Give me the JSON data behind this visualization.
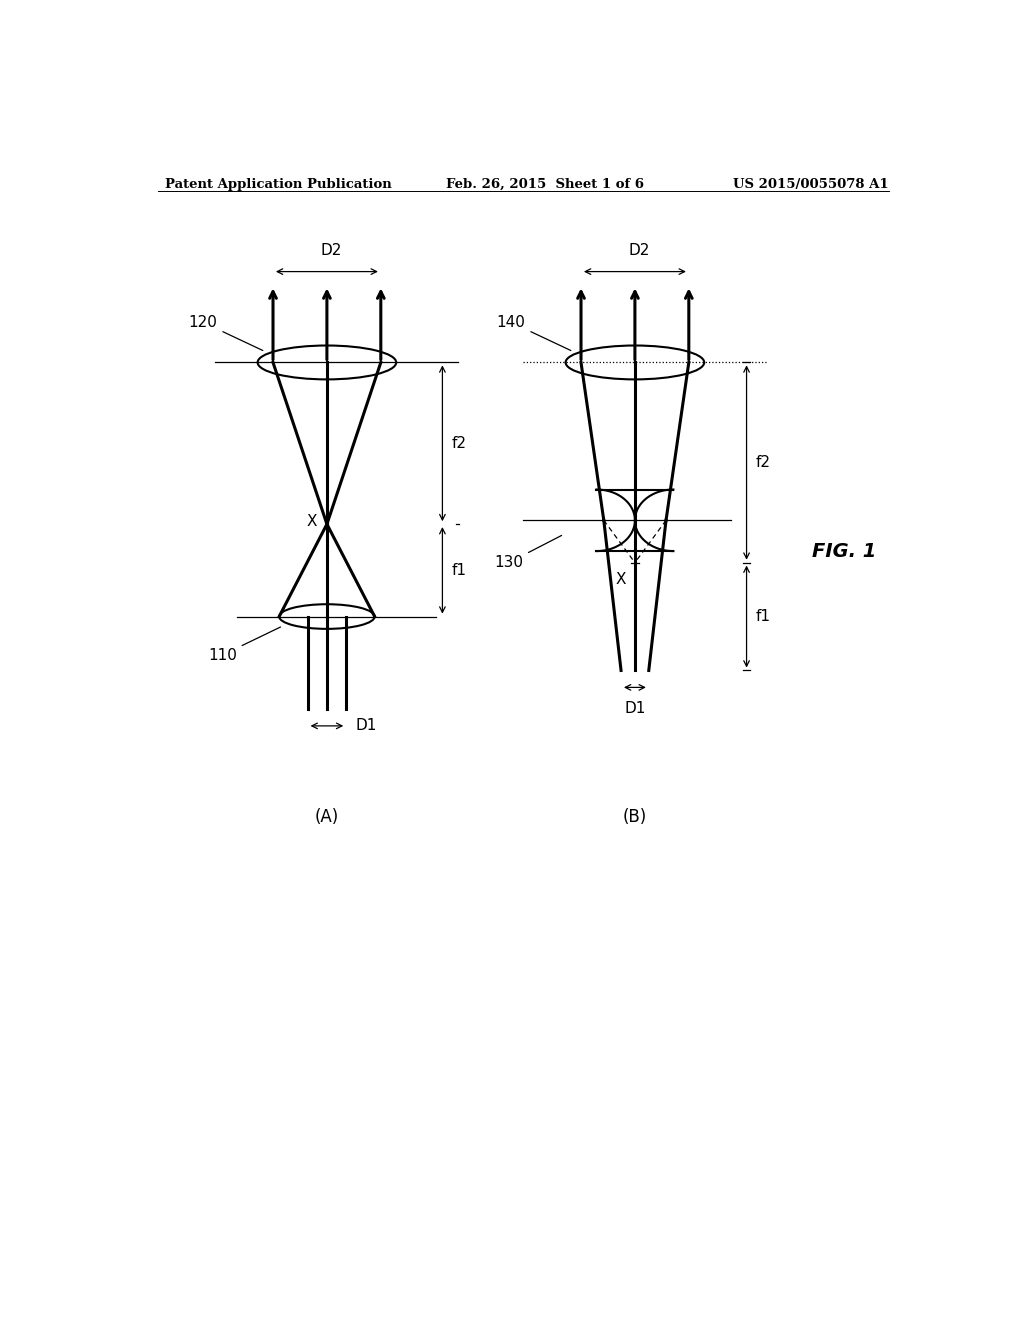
{
  "title_left": "Patent Application Publication",
  "title_mid": "Feb. 26, 2015  Sheet 1 of 6",
  "title_right": "US 2015/0055078 A1",
  "fig_label": "FIG. 1",
  "label_A": "(A)",
  "label_B": "(B)",
  "bg_color": "#ffffff",
  "line_color": "#000000",
  "font_size_header": 9.5,
  "font_size_annot": 11
}
